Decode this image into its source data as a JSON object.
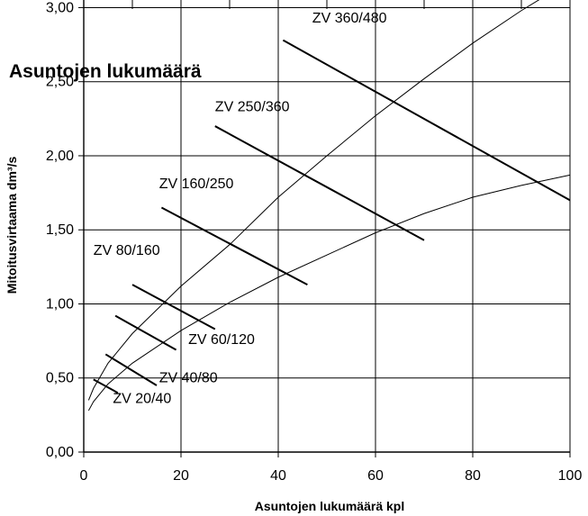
{
  "chart_data": {
    "type": "line",
    "title": "",
    "overlay_text": "Asuntojen lukumäärä",
    "xlabel": "Asuntojen lukumäärä kpl",
    "ylabel": "Mitoitusvirtaama dm³/s",
    "xlim": [
      0,
      100
    ],
    "ylim": [
      0,
      3.1
    ],
    "x_ticks": [
      "0",
      "20",
      "40",
      "60",
      "80",
      "100"
    ],
    "y_ticks": [
      "0,00",
      "0,50",
      "1,00",
      "1,50",
      "2,00",
      "2,50",
      "3,00"
    ],
    "grid": true,
    "legend": "none",
    "curves": [
      {
        "points": [
          [
            1,
            0.35
          ],
          [
            2,
            0.43
          ],
          [
            5,
            0.6
          ],
          [
            10,
            0.8
          ],
          [
            20,
            1.12
          ],
          [
            30,
            1.4
          ],
          [
            40,
            1.72
          ],
          [
            50,
            2.0
          ],
          [
            60,
            2.27
          ],
          [
            70,
            2.52
          ],
          [
            80,
            2.76
          ],
          [
            90,
            2.98
          ],
          [
            100,
            3.18
          ]
        ]
      },
      {
        "points": [
          [
            1,
            0.28
          ],
          [
            2,
            0.34
          ],
          [
            5,
            0.46
          ],
          [
            10,
            0.6
          ],
          [
            20,
            0.82
          ],
          [
            30,
            1.01
          ],
          [
            40,
            1.18
          ],
          [
            50,
            1.33
          ],
          [
            60,
            1.48
          ],
          [
            70,
            1.61
          ],
          [
            80,
            1.72
          ],
          [
            90,
            1.8
          ],
          [
            100,
            1.87
          ]
        ]
      }
    ],
    "valve_lines": [
      {
        "label": "ZV 20/40",
        "x": [
          2,
          7
        ],
        "y": [
          0.49,
          0.4
        ]
      },
      {
        "label": "ZV 40/80",
        "x": [
          4.5,
          15
        ],
        "y": [
          0.66,
          0.45
        ]
      },
      {
        "label": "ZV 60/120",
        "x": [
          6.5,
          19
        ],
        "y": [
          0.92,
          0.69
        ]
      },
      {
        "label": "ZV 80/160",
        "x": [
          10,
          27
        ],
        "y": [
          1.13,
          0.83
        ]
      },
      {
        "label": "ZV 160/250",
        "x": [
          16,
          46
        ],
        "y": [
          1.65,
          1.13
        ]
      },
      {
        "label": "ZV 250/360",
        "x": [
          27,
          70
        ],
        "y": [
          2.2,
          1.43
        ]
      },
      {
        "label": "ZV 360/480",
        "x": [
          41,
          100
        ],
        "y": [
          2.78,
          1.7
        ]
      }
    ],
    "label_positions": [
      {
        "label": "ZV 20/40",
        "x": 6,
        "y": 0.33
      },
      {
        "label": "ZV 40/80",
        "x": 15.5,
        "y": 0.47
      },
      {
        "label": "ZV 60/120",
        "x": 21.5,
        "y": 0.73
      },
      {
        "label": "ZV 80/160",
        "x": 2,
        "y": 1.33
      },
      {
        "label": "ZV 160/250",
        "x": 15.5,
        "y": 1.78
      },
      {
        "label": "ZV 250/360",
        "x": 27,
        "y": 2.3
      },
      {
        "label": "ZV 360/480",
        "x": 47,
        "y": 2.9
      }
    ]
  }
}
